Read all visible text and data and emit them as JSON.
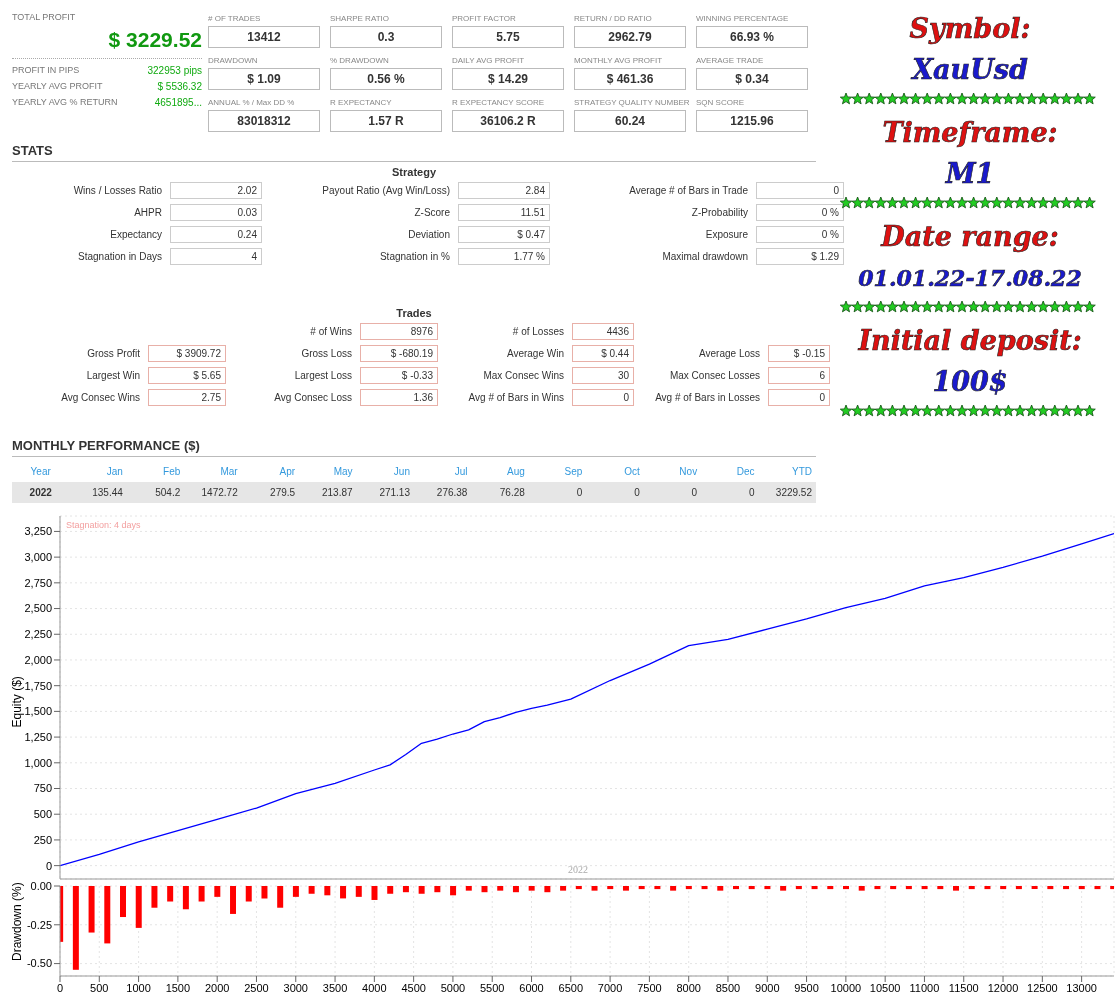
{
  "chart_data": [
    {
      "type": "other",
      "annotations": [
        "TOTAL PROFIT",
        "$ 3229.52",
        "PROFIT IN PIPS",
        "322953 pips",
        "YEARLY AVG PROFIT",
        "$ 5536.32",
        "YEARLY AVG % RETURN",
        "4651895..."
      ]
    },
    {
      "type": "other",
      "annotations": [
        "# OF TRADES",
        "SHARPE RATIO",
        "PROFIT FACTOR",
        "RETURN / DD RATIO",
        "WINNING PERCENTAGE",
        "13412",
        "0.3",
        "5.75",
        "2962.79",
        "66.93 %",
        "DRAWDOWN",
        "% DRAWDOWN",
        "DAILY AVG PROFIT",
        "MONTHLY AVG PROFIT",
        "AVERAGE TRADE",
        "$ 1.09",
        "0.56 %",
        "$ 14.29",
        "$ 461.36",
        "$ 0.34",
        "ANNUAL % / Max DD %",
        "R EXPECTANCY",
        "R EXPECTANCY SCORE",
        "STRATEGY QUALITY NUMBER",
        "SQN SCORE",
        "83018312",
        "1.57 R",
        "36106.2 R",
        "60.24",
        "1215.96"
      ]
    },
    {
      "type": "other",
      "title": "STATS",
      "subtitle": "Strategy",
      "annotations": [
        "Wins / Losses Ratio",
        "2.02",
        "Payout Ratio (Avg Win/Loss)",
        "2.84",
        "Average # of Bars in Trade",
        "0",
        "AHPR",
        "0.03",
        "Z-Score",
        "11.51",
        "Z-Probability",
        "0 %",
        "Expectancy",
        "0.24",
        "Deviation",
        "$ 0.47",
        "Exposure",
        "0 %",
        "Stagnation in Days",
        "4",
        "Stagnation in %",
        "1.77 %",
        "Maximal drawdown",
        "$ 1.29"
      ]
    },
    {
      "type": "other",
      "subtitle": "Trades",
      "annotations": [
        "# of Wins",
        "8976",
        "# of Losses",
        "4436",
        "Gross Profit",
        "$ 3909.72",
        "Gross Loss",
        "$ -680.19",
        "Average Win",
        "$ 0.44",
        "Average Loss",
        "$ -0.15",
        "Largest Win",
        "$ 5.65",
        "Largest Loss",
        "$ -0.33",
        "Max Consec Wins",
        "30",
        "Max Consec Losses",
        "6",
        "Avg Consec Wins",
        "2.75",
        "Avg Consec Loss",
        "1.36",
        "Avg # of Bars in Wins",
        "0",
        "Avg # of Bars in Losses",
        "0"
      ]
    },
    {
      "type": "other",
      "title": "MONTHLY PERFORMANCE ($)",
      "annotations": [
        "Year",
        "Jan",
        "Feb",
        "Mar",
        "Apr",
        "May",
        "Jun",
        "Jul",
        "Aug",
        "Sep",
        "Oct",
        "Nov",
        "Dec",
        "YTD",
        "2022",
        "135.44",
        "504.2",
        "1472.72",
        "279.5",
        "213.87",
        "271.13",
        "276.38",
        "76.28",
        "0",
        "0",
        "0",
        "0",
        "3229.52"
      ]
    },
    {
      "type": "other",
      "annotations": [
        "Symbol:",
        "XauUsd",
        "Timeframe:",
        "M1",
        "Date range:",
        "01.01.22-17.08.22",
        "Initial deposit:",
        "100$"
      ]
    },
    {
      "type": "line",
      "ylabel": "Equity ($)",
      "x": [
        0,
        500,
        1000,
        1500,
        2000,
        2500,
        3000,
        3500,
        4000,
        4200,
        4400,
        4600,
        4800,
        5000,
        5200,
        5400,
        5600,
        5800,
        6000,
        6200,
        6500,
        7000,
        7500,
        8000,
        8500,
        9000,
        9500,
        10000,
        10500,
        11000,
        11500,
        12000,
        12500,
        13000,
        13412
      ],
      "series": [
        {
          "color": "#0000ff",
          "values": [
            0,
            110,
            230,
            340,
            450,
            560,
            700,
            800,
            930,
            980,
            1080,
            1190,
            1230,
            1280,
            1320,
            1400,
            1440,
            1490,
            1530,
            1560,
            1620,
            1800,
            1960,
            2140,
            2200,
            2300,
            2400,
            2510,
            2600,
            2720,
            2800,
            2900,
            3010,
            3130,
            3229.52
          ]
        }
      ],
      "xlim": [
        0,
        13412
      ],
      "tick_labels": "y",
      "ylim": [
        -130,
        3400
      ],
      "yticks": [
        0,
        250,
        500,
        750,
        {
          "value": 1000,
          "label": "1,000"
        },
        {
          "value": 1250,
          "label": "1,250"
        },
        {
          "value": 1500,
          "label": "1,500"
        },
        {
          "value": 1750,
          "label": "1,750"
        },
        {
          "value": 2000,
          "label": "2,000"
        },
        {
          "value": 2250,
          "label": "2,250"
        },
        {
          "value": 2500,
          "label": "2,500"
        },
        {
          "value": 2750,
          "label": "2,750"
        },
        {
          "value": 3000,
          "label": "3,000"
        },
        {
          "value": 3250,
          "label": "3,250"
        }
      ],
      "annotations": [
        "Stagnation: 4 days",
        "2022"
      ],
      "grid": true,
      "legend": false,
      "marker": "none"
    },
    {
      "type": "bar",
      "ylabel": "Drawdown (%)",
      "x": [
        0,
        200,
        400,
        600,
        800,
        1000,
        1200,
        1400,
        1600,
        1800,
        2000,
        2200,
        2400,
        2600,
        2800,
        3000,
        3200,
        3400,
        3600,
        3800,
        4000,
        4200,
        4400,
        4600,
        4800,
        5000,
        5200,
        5400,
        5600,
        5800,
        6000,
        6200,
        6400,
        6600,
        6800,
        7000,
        7200,
        7400,
        7600,
        7800,
        8000,
        8200,
        8400,
        8600,
        8800,
        9000,
        9200,
        9400,
        9600,
        9800,
        10000,
        10200,
        10400,
        10600,
        10800,
        11000,
        11200,
        11400,
        11600,
        11800,
        12000,
        12200,
        12400,
        12600,
        12800,
        13000,
        13200,
        13400
      ],
      "series": [
        {
          "color": "#ff0000",
          "values": [
            -0.36,
            -0.54,
            -0.3,
            -0.37,
            -0.2,
            -0.27,
            -0.14,
            -0.1,
            -0.15,
            -0.1,
            -0.07,
            -0.18,
            -0.1,
            -0.08,
            -0.14,
            -0.07,
            -0.05,
            -0.06,
            -0.08,
            -0.07,
            -0.09,
            -0.05,
            -0.04,
            -0.05,
            -0.04,
            -0.06,
            -0.03,
            -0.04,
            -0.03,
            -0.04,
            -0.03,
            -0.04,
            -0.03,
            -0.02,
            -0.03,
            -0.02,
            -0.03,
            -0.02,
            -0.02,
            -0.03,
            -0.02,
            -0.02,
            -0.03,
            -0.02,
            -0.02,
            -0.02,
            -0.03,
            -0.02,
            -0.02,
            -0.02,
            -0.02,
            -0.03,
            -0.02,
            -0.02,
            -0.02,
            -0.02,
            -0.02,
            -0.03,
            -0.02,
            -0.02,
            -0.02,
            -0.02,
            -0.02,
            -0.02,
            -0.02,
            -0.02,
            -0.02,
            -0.02
          ]
        }
      ],
      "xlim": [
        0,
        13412
      ],
      "xticks": [
        0,
        500,
        1000,
        1500,
        2000,
        2500,
        3000,
        3500,
        4000,
        4500,
        5000,
        5500,
        6000,
        6500,
        7000,
        7500,
        8000,
        8500,
        9000,
        9500,
        10000,
        10500,
        11000,
        11500,
        12000,
        12500,
        13000
      ],
      "ylim": [
        -0.58,
        0
      ],
      "yticks": [
        {
          "value": -0.5,
          "label": "-0.50"
        },
        {
          "value": -0.25,
          "label": "-0.25"
        },
        {
          "value": 0,
          "label": "0.00"
        }
      ],
      "grid": true,
      "legend": false
    }
  ]
}
